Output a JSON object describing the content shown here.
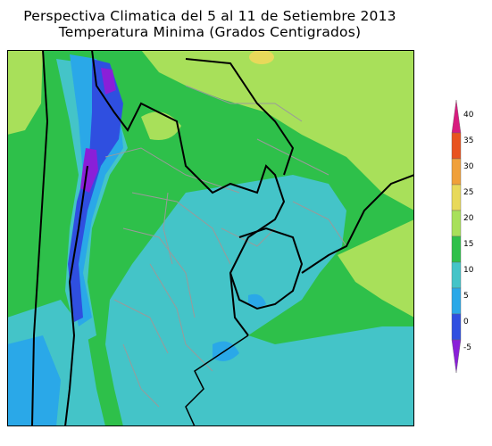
{
  "title": "Perspectiva Climatica del 5 al 11 de Setiembre 2013",
  "subtitle": "Temperatura Minima (Grados Centigrados)",
  "legend": {
    "ticks": [
      "40",
      "35",
      "30",
      "25",
      "20",
      "15",
      "10",
      "5",
      "0",
      "-5"
    ],
    "bands": [
      {
        "from": 35,
        "to": 40,
        "color": "#d81b7f"
      },
      {
        "from": 30,
        "to": 35,
        "color": "#e8531f"
      },
      {
        "from": 25,
        "to": 30,
        "color": "#f0a03a"
      },
      {
        "from": 20,
        "to": 25,
        "color": "#e8d95a"
      },
      {
        "from": 15,
        "to": 20,
        "color": "#a8e05a"
      },
      {
        "from": 10,
        "to": 15,
        "color": "#2ec04a"
      },
      {
        "from": 5,
        "to": 10,
        "color": "#44c4c8"
      },
      {
        "from": 0,
        "to": 5,
        "color": "#2aa8e8"
      },
      {
        "from": -5,
        "to": 0,
        "color": "#2f4fe0"
      },
      {
        "from": -10,
        "to": -5,
        "color": "#8a1fd8"
      }
    ]
  },
  "map_colors": {
    "light_green": "#a8e05a",
    "green": "#2ec04a",
    "cyan": "#44c4c8",
    "light_blue": "#2aa8e8",
    "blue": "#2f4fe0",
    "purple": "#8a1fd8",
    "yellow": "#e8d95a"
  }
}
